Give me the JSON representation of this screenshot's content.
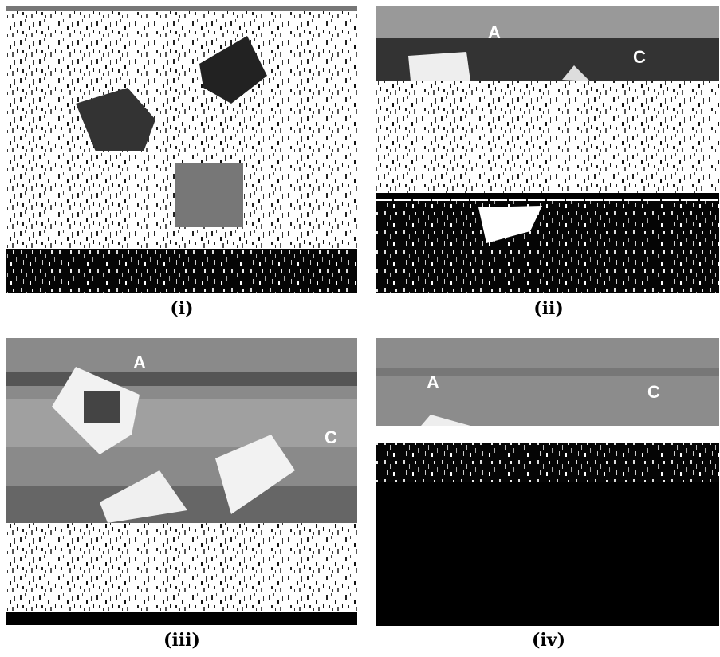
{
  "panels": [
    {
      "caption": "(i)",
      "labels": []
    },
    {
      "caption": "(ii)",
      "labels": [
        "A",
        "C"
      ]
    },
    {
      "caption": "(iii)",
      "labels": [
        "A",
        "C"
      ]
    },
    {
      "caption": "(iv)",
      "labels": [
        "A",
        "C"
      ]
    }
  ]
}
